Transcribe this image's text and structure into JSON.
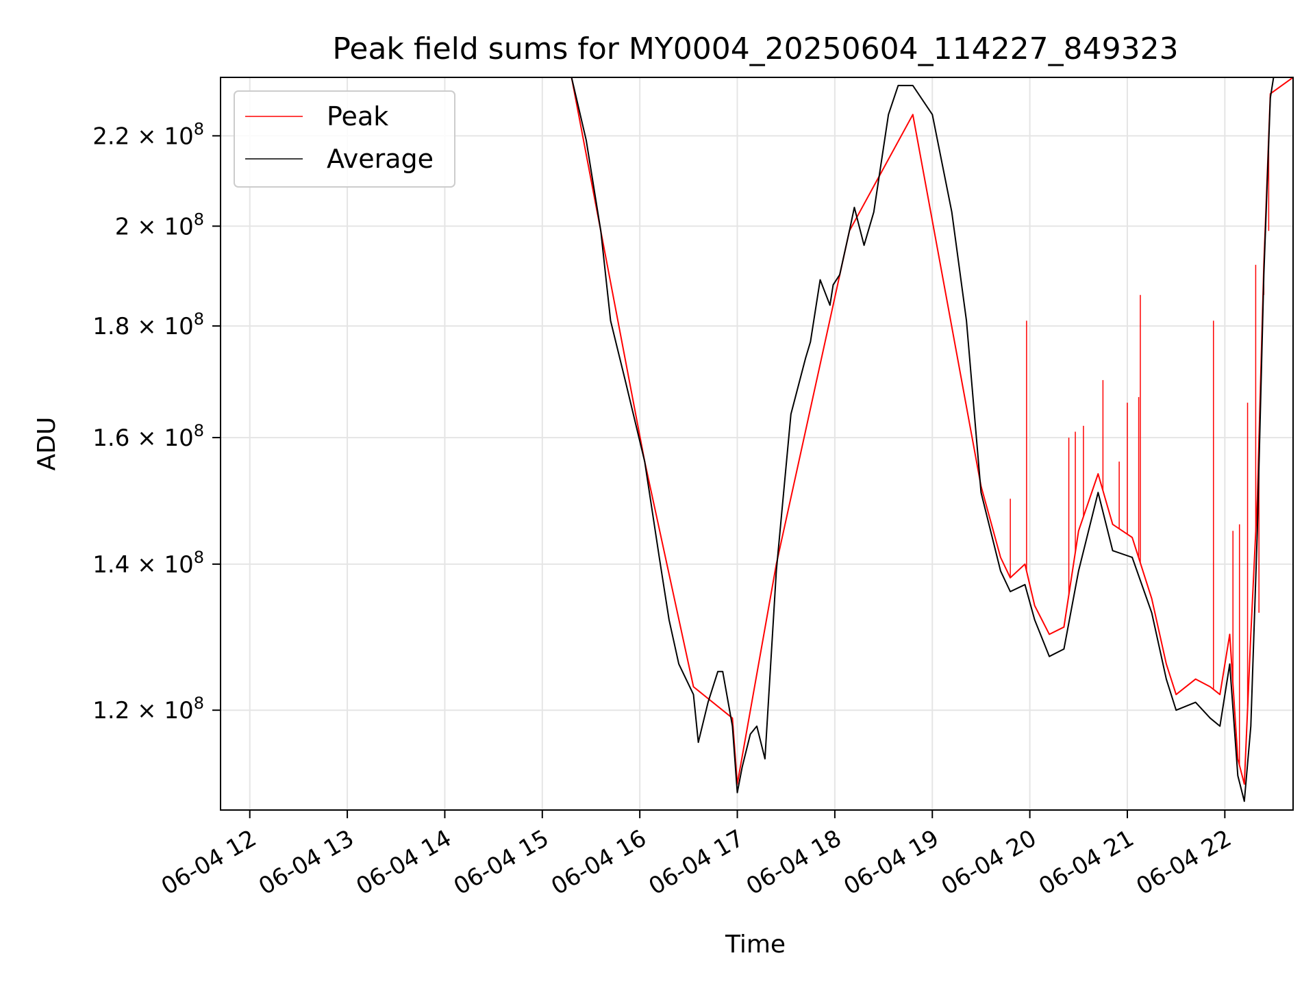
{
  "chart_data": {
    "type": "line",
    "title": "Peak field sums for MY0004_20250604_114227_849323",
    "xlabel": "Time",
    "ylabel": "ADU",
    "x_ticks": [
      "06-04 12",
      "06-04 13",
      "06-04 14",
      "06-04 15",
      "06-04 16",
      "06-04 17",
      "06-04 18",
      "06-04 19",
      "06-04 20",
      "06-04 21",
      "06-04 22"
    ],
    "y_ticks": [
      {
        "base": "1.2",
        "exp": "8",
        "value": 120000000
      },
      {
        "base": "1.4",
        "exp": "8",
        "value": 140000000
      },
      {
        "base": "1.6",
        "exp": "8",
        "value": 160000000
      },
      {
        "base": "1.8",
        "exp": "8",
        "value": 180000000
      },
      {
        "base": "2",
        "exp": "8",
        "value": 200000000
      },
      {
        "base": "2.2",
        "exp": "8",
        "value": 220000000
      }
    ],
    "xlim": [
      "2025-06-04 11:42",
      "2025-06-04 22:42"
    ],
    "ylim": [
      108000000,
      234000000
    ],
    "yscale": "log",
    "grid": true,
    "legend_position": "top-left",
    "series": [
      {
        "name": "Average",
        "color": "#000000",
        "x": [
          "2025-06-04 11:42",
          "2025-06-04 11:49",
          "2025-06-04 15:18",
          "2025-06-04 15:27",
          "2025-06-04 15:36",
          "2025-06-04 15:42",
          "2025-06-04 15:51",
          "2025-06-04 16:03",
          "2025-06-04 16:12",
          "2025-06-04 16:18",
          "2025-06-04 16:24",
          "2025-06-04 16:33",
          "2025-06-04 16:36",
          "2025-06-04 16:42",
          "2025-06-04 16:48",
          "2025-06-04 16:51",
          "2025-06-04 16:57",
          "2025-06-04 17:00",
          "2025-06-04 17:03",
          "2025-06-04 17:08",
          "2025-06-04 17:12",
          "2025-06-04 17:17",
          "2025-06-04 17:24",
          "2025-06-04 17:33",
          "2025-06-04 17:42",
          "2025-06-04 17:45",
          "2025-06-04 17:51",
          "2025-06-04 17:57",
          "2025-06-04 17:59",
          "2025-06-04 18:03",
          "2025-06-04 18:09",
          "2025-06-04 18:12",
          "2025-06-04 18:18",
          "2025-06-04 18:24",
          "2025-06-04 18:33",
          "2025-06-04 18:39",
          "2025-06-04 18:48",
          "2025-06-04 19:00",
          "2025-06-04 19:12",
          "2025-06-04 19:21",
          "2025-06-04 19:30",
          "2025-06-04 19:42",
          "2025-06-04 19:48",
          "2025-06-04 19:57",
          "2025-06-04 20:03",
          "2025-06-04 20:12",
          "2025-06-04 20:21",
          "2025-06-04 20:30",
          "2025-06-04 20:42",
          "2025-06-04 20:51",
          "2025-06-04 21:03",
          "2025-06-04 21:15",
          "2025-06-04 21:24",
          "2025-06-04 21:30",
          "2025-06-04 21:42",
          "2025-06-04 21:51",
          "2025-06-04 21:57",
          "2025-06-04 22:03",
          "2025-06-04 22:08",
          "2025-06-04 22:12",
          "2025-06-04 22:16",
          "2025-06-04 22:20",
          "2025-06-04 22:24",
          "2025-06-04 22:28",
          "2025-06-04 22:30",
          "2025-06-04 22:42"
        ],
        "values": [
          234000000,
          234000000,
          234000000,
          219000000,
          199000000,
          181000000,
          170000000,
          156000000,
          141000000,
          132000000,
          126000000,
          122000000,
          116000000,
          121000000,
          125000000,
          125000000,
          118000000,
          110000000,
          113000000,
          117000000,
          118000000,
          114000000,
          139000000,
          164000000,
          174000000,
          177000000,
          189000000,
          184000000,
          188000000,
          190000000,
          199000000,
          204000000,
          196000000,
          203000000,
          225000000,
          232000000,
          232000000,
          225000000,
          203000000,
          181000000,
          151000000,
          139000000,
          136000000,
          137000000,
          132000000,
          127000000,
          128000000,
          139000000,
          151000000,
          142000000,
          141000000,
          133000000,
          124000000,
          120000000,
          121000000,
          119000000,
          118000000,
          126000000,
          112000000,
          109000000,
          118000000,
          145000000,
          190000000,
          229000000,
          234000000,
          234000000
        ]
      },
      {
        "name": "Peak",
        "color": "#ff0000",
        "x": [
          "2025-06-04 11:42",
          "2025-06-04 15:18",
          "2025-06-04 16:03",
          "2025-06-04 16:33",
          "2025-06-04 16:57",
          "2025-06-04 17:00",
          "2025-06-04 17:24",
          "2025-06-04 18:09",
          "2025-06-04 18:48",
          "2025-06-04 19:30",
          "2025-06-04 19:42",
          "2025-06-04 19:48",
          "2025-06-04 19:57",
          "2025-06-04 20:03",
          "2025-06-04 20:12",
          "2025-06-04 20:21",
          "2025-06-04 20:30",
          "2025-06-04 20:42",
          "2025-06-04 20:51",
          "2025-06-04 21:03",
          "2025-06-04 21:15",
          "2025-06-04 21:24",
          "2025-06-04 21:30",
          "2025-06-04 21:42",
          "2025-06-04 21:51",
          "2025-06-04 21:57",
          "2025-06-04 22:03",
          "2025-06-04 22:08",
          "2025-06-04 22:12",
          "2025-06-04 22:16",
          "2025-06-04 22:20",
          "2025-06-04 22:24",
          "2025-06-04 22:28",
          "2025-06-04 22:42"
        ],
        "values": [
          234000000,
          234000000,
          156000000,
          123000000,
          119000000,
          111000000,
          140000000,
          199000000,
          225000000,
          152000000,
          141000000,
          138000000,
          140000000,
          134000000,
          130000000,
          131000000,
          145000000,
          154000000,
          146000000,
          144000000,
          135000000,
          126000000,
          122000000,
          124000000,
          123000000,
          122000000,
          130000000,
          114000000,
          111000000,
          130000000,
          150000000,
          192000000,
          230000000,
          234000000
        ]
      }
    ],
    "spikes": {
      "series": "Peak",
      "x": [
        "2025-06-04 19:48",
        "2025-06-04 19:58",
        "2025-06-04 20:24",
        "2025-06-04 20:28",
        "2025-06-04 20:33",
        "2025-06-04 20:45",
        "2025-06-04 20:55",
        "2025-06-04 21:00",
        "2025-06-04 21:07",
        "2025-06-04 21:08",
        "2025-06-04 21:53",
        "2025-06-04 22:05",
        "2025-06-04 22:09",
        "2025-06-04 22:14",
        "2025-06-04 22:19",
        "2025-06-04 22:21",
        "2025-06-04 22:24",
        "2025-06-04 22:27"
      ],
      "values": [
        150000000,
        181000000,
        160000000,
        161000000,
        162000000,
        170000000,
        156000000,
        166000000,
        167000000,
        186000000,
        181000000,
        145000000,
        146000000,
        166000000,
        192000000,
        133000000,
        186000000,
        199000000
      ]
    }
  }
}
